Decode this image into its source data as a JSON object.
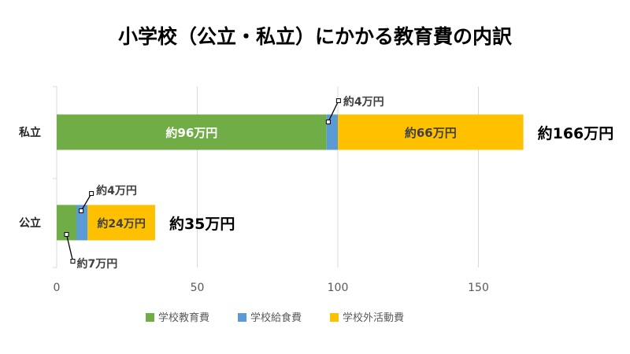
{
  "chart_data": {
    "type": "bar",
    "orientation": "horizontal",
    "stacked": true,
    "title": "小学校（公立・私立）にかかる教育費の内訳",
    "categories": [
      "私立",
      "公立"
    ],
    "series": [
      {
        "name": "学校教育費",
        "values": [
          96,
          7
        ],
        "color": "#70ad47"
      },
      {
        "name": "学校給食費",
        "values": [
          4,
          4
        ],
        "color": "#5b9bd5"
      },
      {
        "name": "学校外活動費",
        "values": [
          66,
          24
        ],
        "color": "#ffc000"
      }
    ],
    "segment_labels": [
      [
        "約96万円",
        "約4万円",
        "約66万円"
      ],
      [
        "約7万円",
        "約4万円",
        "約24万円"
      ]
    ],
    "totals": [
      166,
      35
    ],
    "total_labels": [
      "約166万円",
      "約35万円"
    ],
    "x_ticks": [
      "0",
      "50",
      "100",
      "150"
    ],
    "tick_values": [
      0,
      50,
      100,
      150
    ],
    "xlim": [
      0,
      175
    ],
    "grid": true,
    "legend_position": "bottom"
  }
}
